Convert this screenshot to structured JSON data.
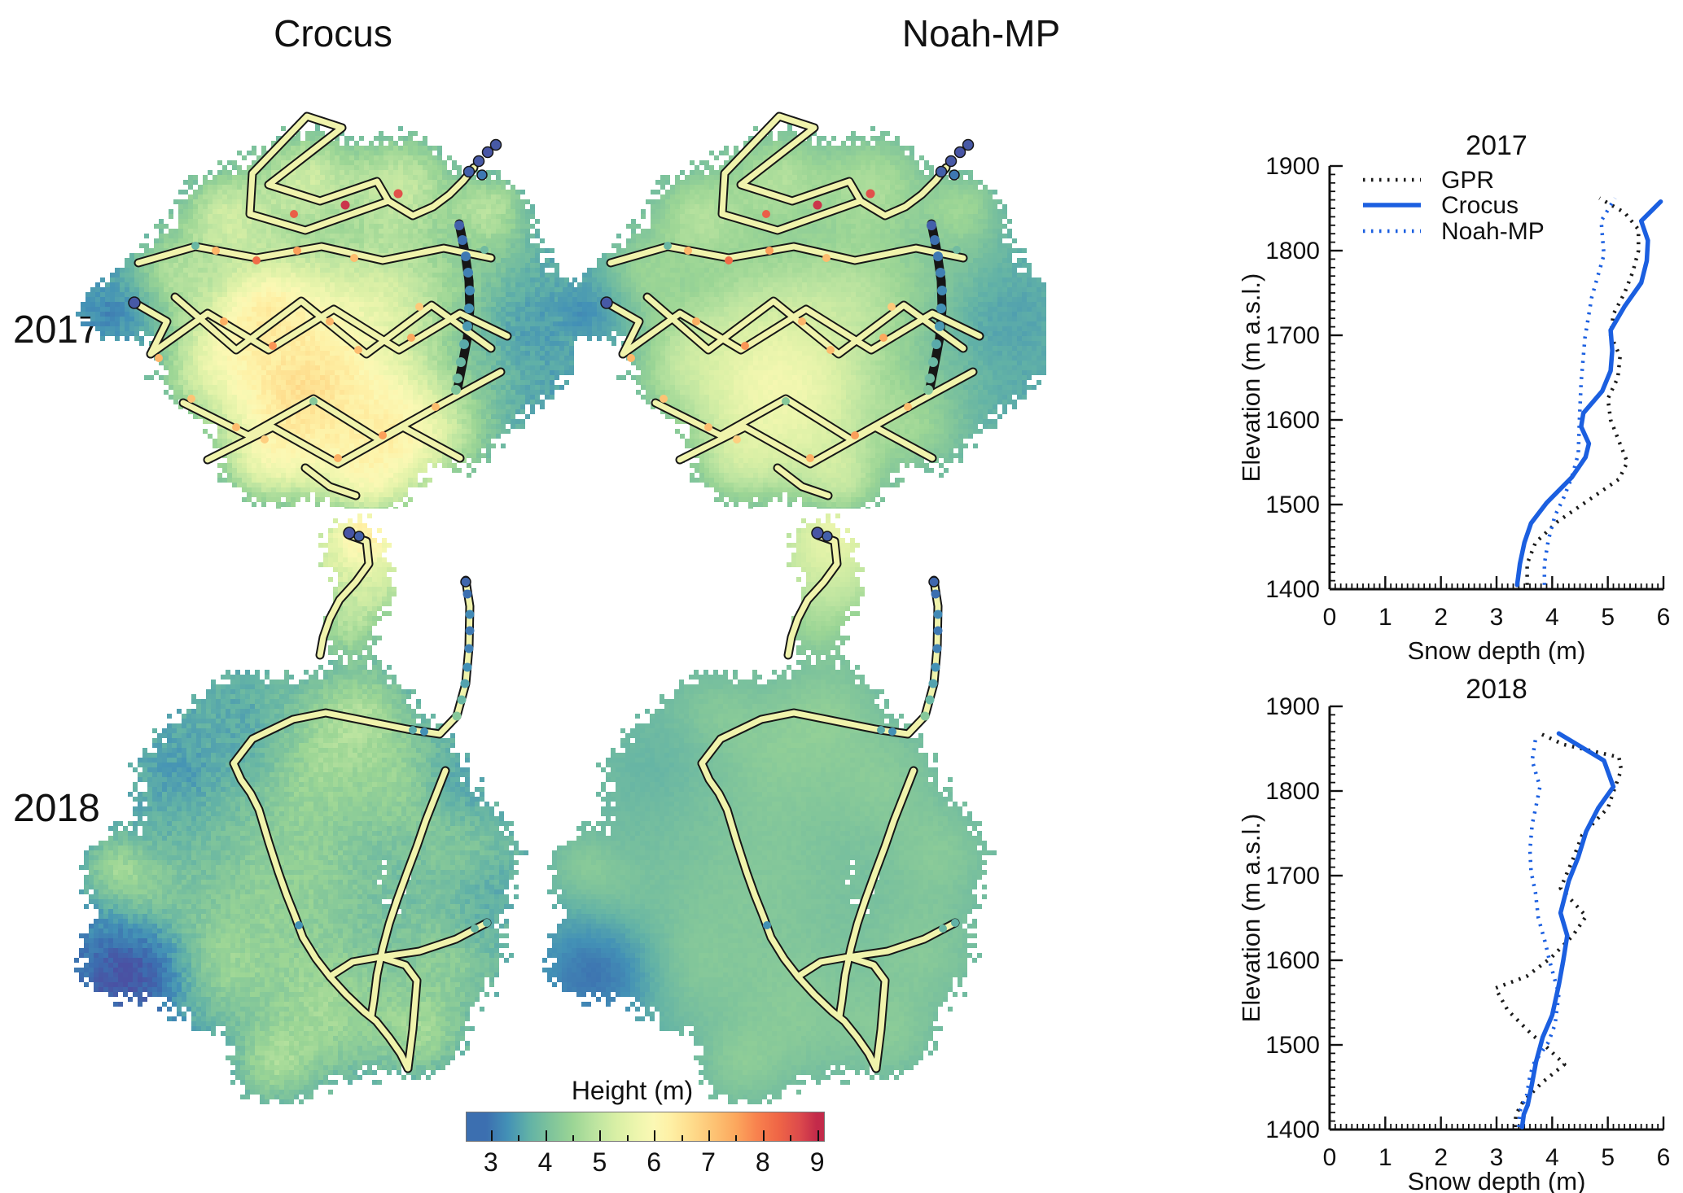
{
  "figure": {
    "column_headers": [
      {
        "label": "Crocus"
      },
      {
        "label": "Noah-MP"
      }
    ],
    "row_labels": [
      {
        "label": "2017"
      },
      {
        "label": "2018"
      }
    ],
    "colorbar": {
      "title": "Height (m)",
      "ticks": [
        3,
        4,
        5,
        6,
        7,
        8,
        9
      ],
      "minor_ticks": [
        3.5,
        4.5,
        5.5,
        6.5,
        7.5,
        8.5
      ],
      "vmin": 2.54,
      "vmax": 9.14,
      "stops": [
        [
          2.5,
          "#4a51a3"
        ],
        [
          2.9,
          "#3c6fb0"
        ],
        [
          3.3,
          "#4391b6"
        ],
        [
          3.7,
          "#62b2a6"
        ],
        [
          4.1,
          "#7fc49b"
        ],
        [
          4.5,
          "#9bd595"
        ],
        [
          4.9,
          "#bce4a0"
        ],
        [
          5.3,
          "#d8efa5"
        ],
        [
          5.7,
          "#eef6ae"
        ],
        [
          6.0,
          "#fbf8b4"
        ],
        [
          6.3,
          "#fef0a5"
        ],
        [
          6.7,
          "#fedc8c"
        ],
        [
          7.1,
          "#fdc374"
        ],
        [
          7.5,
          "#fca85e"
        ],
        [
          7.9,
          "#f8824e"
        ],
        [
          8.3,
          "#ef6546"
        ],
        [
          8.7,
          "#dc4a4c"
        ],
        [
          9.0,
          "#c32a4a"
        ],
        [
          9.2,
          "#a91843"
        ]
      ]
    },
    "maps": [
      {
        "id": "map-2017-crocus",
        "row": "2017",
        "model": "Crocus",
        "edge_height_m": 4.05,
        "center_height_m": 6.0
      },
      {
        "id": "map-2017-noahmp",
        "row": "2017",
        "model": "Noah-MP",
        "edge_height_m": 4.05,
        "center_height_m": 5.35
      },
      {
        "id": "map-2018-crocus",
        "row": "2018",
        "model": "Crocus",
        "edge_height_m": 3.85,
        "center_height_m": 5.05
      },
      {
        "id": "map-2018-noahmp",
        "row": "2018",
        "model": "Noah-MP",
        "edge_height_m": 3.95,
        "center_height_m": 4.45
      }
    ],
    "line_colors": {
      "gpr": "#1a1a1a",
      "model_blue": "#1b5fe0"
    }
  },
  "chart_data": [
    {
      "type": "line",
      "title": "2017",
      "xlabel": "Snow depth (m)",
      "ylabel": "Elevation (m a.s.l.)",
      "xlim": [
        0,
        6
      ],
      "ylim": [
        1400,
        1900
      ],
      "xticks": [
        0,
        1,
        2,
        3,
        4,
        5,
        6
      ],
      "yticks": [
        1400,
        1500,
        1600,
        1700,
        1800,
        1900
      ],
      "xminor": 0.1,
      "yminor": 10,
      "grid": false,
      "legend_show": true,
      "legend_position": "top-left",
      "legend": [
        "GPR",
        "Crocus",
        "Noah-MP"
      ],
      "series": [
        {
          "name": "GPR",
          "style": "dotted",
          "color": "#1a1a1a",
          "points": [
            [
              3.55,
              1405
            ],
            [
              3.55,
              1430
            ],
            [
              3.7,
              1455
            ],
            [
              4.1,
              1480
            ],
            [
              4.65,
              1505
            ],
            [
              5.2,
              1530
            ],
            [
              5.35,
              1550
            ],
            [
              5.2,
              1575
            ],
            [
              5.05,
              1600
            ],
            [
              5.0,
              1625
            ],
            [
              5.18,
              1650
            ],
            [
              5.22,
              1675
            ],
            [
              5.05,
              1700
            ],
            [
              5.1,
              1725
            ],
            [
              5.3,
              1750
            ],
            [
              5.45,
              1775
            ],
            [
              5.55,
              1800
            ],
            [
              5.55,
              1825
            ],
            [
              5.3,
              1845
            ],
            [
              4.85,
              1862
            ]
          ]
        },
        {
          "name": "Crocus",
          "style": "solid",
          "color": "#1b5fe0",
          "points": [
            [
              3.37,
              1405
            ],
            [
              3.42,
              1430
            ],
            [
              3.5,
              1455
            ],
            [
              3.62,
              1478
            ],
            [
              3.9,
              1502
            ],
            [
              4.35,
              1532
            ],
            [
              4.6,
              1556
            ],
            [
              4.66,
              1572
            ],
            [
              4.52,
              1592
            ],
            [
              4.56,
              1608
            ],
            [
              4.9,
              1634
            ],
            [
              5.05,
              1658
            ],
            [
              5.08,
              1682
            ],
            [
              5.05,
              1706
            ],
            [
              5.3,
              1734
            ],
            [
              5.6,
              1762
            ],
            [
              5.7,
              1788
            ],
            [
              5.72,
              1812
            ],
            [
              5.6,
              1835
            ],
            [
              5.95,
              1858
            ]
          ]
        },
        {
          "name": "Noah-MP",
          "style": "dotted",
          "color": "#1b5fe0",
          "points": [
            [
              3.86,
              1405
            ],
            [
              3.86,
              1430
            ],
            [
              3.93,
              1458
            ],
            [
              4.05,
              1487
            ],
            [
              4.2,
              1507
            ],
            [
              4.35,
              1532
            ],
            [
              4.47,
              1560
            ],
            [
              4.49,
              1600
            ],
            [
              4.52,
              1645
            ],
            [
              4.59,
              1697
            ],
            [
              4.71,
              1745
            ],
            [
              4.93,
              1795
            ],
            [
              4.88,
              1835
            ],
            [
              5.13,
              1862
            ]
          ]
        }
      ]
    },
    {
      "type": "line",
      "title": "2018",
      "xlabel": "Snow depth (m)",
      "ylabel": "Elevation (m a.s.l.)",
      "xlim": [
        0,
        6
      ],
      "ylim": [
        1400,
        1900
      ],
      "xticks": [
        0,
        1,
        2,
        3,
        4,
        5,
        6
      ],
      "yticks": [
        1400,
        1500,
        1600,
        1700,
        1800,
        1900
      ],
      "xminor": 0.1,
      "yminor": 10,
      "grid": false,
      "legend_show": false,
      "legend": [
        "GPR",
        "Crocus",
        "Noah-MP"
      ],
      "series": [
        {
          "name": "GPR",
          "style": "dotted",
          "color": "#1a1a1a",
          "points": [
            [
              3.33,
              1403
            ],
            [
              3.35,
              1418
            ],
            [
              3.47,
              1432
            ],
            [
              3.81,
              1455
            ],
            [
              4.22,
              1477
            ],
            [
              3.86,
              1500
            ],
            [
              3.64,
              1512
            ],
            [
              3.2,
              1541
            ],
            [
              2.98,
              1567
            ],
            [
              3.54,
              1581
            ],
            [
              3.98,
              1603
            ],
            [
              4.37,
              1629
            ],
            [
              4.61,
              1652
            ],
            [
              4.15,
              1685
            ],
            [
              4.37,
              1719
            ],
            [
              4.54,
              1748
            ],
            [
              5.0,
              1780
            ],
            [
              5.24,
              1825
            ],
            [
              5.2,
              1840
            ],
            [
              4.2,
              1855
            ],
            [
              3.78,
              1868
            ]
          ]
        },
        {
          "name": "Crocus",
          "style": "solid",
          "color": "#1b5fe0",
          "points": [
            [
              3.46,
              1403
            ],
            [
              3.49,
              1418
            ],
            [
              3.56,
              1429
            ],
            [
              3.64,
              1455
            ],
            [
              3.71,
              1480
            ],
            [
              3.83,
              1509
            ],
            [
              4.0,
              1535
            ],
            [
              4.12,
              1571
            ],
            [
              4.2,
              1600
            ],
            [
              4.27,
              1629
            ],
            [
              4.15,
              1656
            ],
            [
              4.3,
              1694
            ],
            [
              4.47,
              1722
            ],
            [
              4.61,
              1752
            ],
            [
              4.83,
              1780
            ],
            [
              5.1,
              1805
            ],
            [
              4.93,
              1836
            ],
            [
              4.12,
              1868
            ]
          ]
        },
        {
          "name": "Noah-MP",
          "style": "dotted",
          "color": "#1b5fe0",
          "points": [
            [
              3.4,
              1403
            ],
            [
              3.42,
              1422
            ],
            [
              3.54,
              1440
            ],
            [
              3.6,
              1463
            ],
            [
              3.66,
              1477
            ],
            [
              3.93,
              1503
            ],
            [
              4.05,
              1524
            ],
            [
              4.12,
              1560
            ],
            [
              3.95,
              1600
            ],
            [
              3.88,
              1620
            ],
            [
              3.75,
              1650
            ],
            [
              3.7,
              1680
            ],
            [
              3.62,
              1705
            ],
            [
              3.6,
              1730
            ],
            [
              3.64,
              1760
            ],
            [
              3.71,
              1782
            ],
            [
              3.78,
              1805
            ],
            [
              3.64,
              1836
            ],
            [
              3.71,
              1865
            ]
          ]
        }
      ]
    }
  ]
}
